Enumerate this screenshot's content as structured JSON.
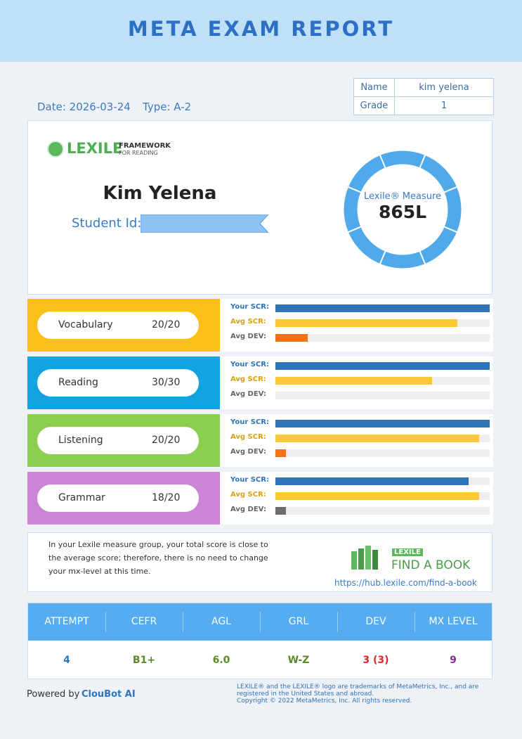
{
  "header": {
    "title": "META EXAM REPORT"
  },
  "info": {
    "date": "Date: 2026-03-24",
    "type": "Type: A-2",
    "name_label": "Name",
    "name": "kim yelena",
    "grade_label": "Grade",
    "grade": "1"
  },
  "card": {
    "logo_word": "LEXILE",
    "logo_sub1": "FRAMEWORK",
    "logo_sub2": "FOR READING",
    "student_name": "Kim Yelena",
    "student_id_label": "Student Id:",
    "measure_label": "Lexile® Measure",
    "measure": "865L"
  },
  "sections": [
    {
      "name": "Vocabulary",
      "score": "20/20",
      "color": "#fbbf1a",
      "bars": [
        {
          "label": "Your SCR:",
          "value": 1,
          "color": "#2f73b8"
        },
        {
          "label": "Avg SCR:",
          "value": 0.85,
          "color": "#fdc83a"
        },
        {
          "label": "Avg DEV:",
          "value": 0.15,
          "color": "#f57316"
        }
      ]
    },
    {
      "name": "Reading",
      "score": "30/30",
      "color": "#12a4e0",
      "bars": [
        {
          "label": "Your SCR:",
          "value": 1,
          "color": "#2f73b8"
        },
        {
          "label": "Avg SCR:",
          "value": 0.73,
          "color": "#fdc83a"
        },
        {
          "label": "Avg DEV:",
          "value": 0,
          "color": "#f57316"
        }
      ]
    },
    {
      "name": "Listening",
      "score": "20/20",
      "color": "#8ccf4e",
      "bars": [
        {
          "label": "Your SCR:",
          "value": 1,
          "color": "#2f73b8"
        },
        {
          "label": "Avg SCR:",
          "value": 0.95,
          "color": "#fdc83a"
        },
        {
          "label": "Avg DEV:",
          "value": 0.05,
          "color": "#f57316"
        }
      ]
    },
    {
      "name": "Grammar",
      "score": "18/20",
      "color": "#cc84d6",
      "bars": [
        {
          "label": "Your SCR:",
          "value": 0.9,
          "color": "#2f73b8"
        },
        {
          "label": "Avg SCR:",
          "value": 0.95,
          "color": "#fdc83a"
        },
        {
          "label": "Avg DEV:",
          "value": 0.05,
          "color": "#6d6d6d"
        }
      ]
    }
  ],
  "note": {
    "lines": [
      "In your Lexile measure group, your total score is close to",
      "the average score; therefore, there is no need to change",
      "your mx-level at this time."
    ],
    "brand": "LEXILE",
    "title": "FIND A BOOK",
    "url": "https://hub.lexile.com/find-a-book"
  },
  "results": {
    "headers": [
      "ATTEMPT",
      "CEFR",
      "AGL",
      "GRL",
      "DEV",
      "MX LEVEL"
    ],
    "values": [
      {
        "text": "4",
        "color": "#2f73b8"
      },
      {
        "text": "B1+",
        "color": "#5a8a2a"
      },
      {
        "text": "6.0",
        "color": "#5a8a2a"
      },
      {
        "text": "W-Z",
        "color": "#5a8a2a"
      },
      {
        "text": "3 (3)",
        "color": "#e0262b"
      },
      {
        "text": "9",
        "color": "#8a2a9a"
      }
    ]
  },
  "footer": {
    "powered_prefix": "Powered by",
    "powered_brand": "ClouBot AI",
    "legal": [
      "LEXILE® and the LEXILE® logo are trademarks of MetaMetrics, Inc., and are",
      "registered in the United States and abroad.",
      "Copyright   © 2022 MetaMetrics, Inc. All rights reserved."
    ]
  }
}
